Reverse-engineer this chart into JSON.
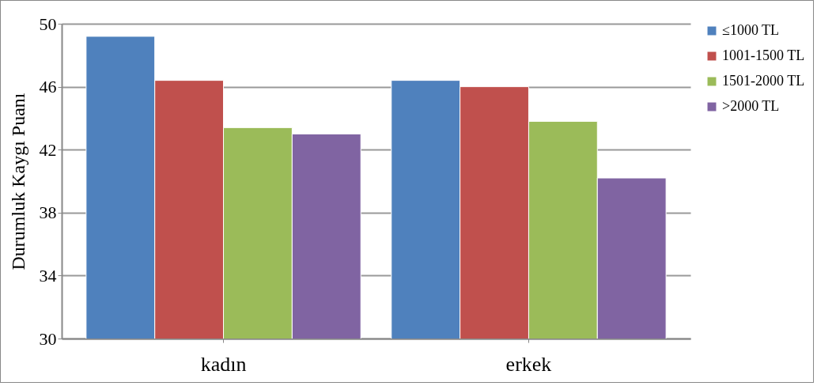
{
  "chart_data": {
    "type": "bar",
    "ylabel": "Durumluk Kaygı Puanı",
    "categories": [
      "kadın",
      "erkek"
    ],
    "series": [
      {
        "name": "≤1000 TL",
        "color": "#4f81bd",
        "values": [
          49.2,
          46.4
        ]
      },
      {
        "name": "1001-1500 TL",
        "color": "#c0504d",
        "values": [
          46.4,
          46.0
        ]
      },
      {
        "name": "1501-2000 TL",
        "color": "#9bbb59",
        "values": [
          43.4,
          43.8
        ]
      },
      {
        "name": ">2000 TL",
        "color": "#8064a2",
        "values": [
          43.0,
          40.2
        ]
      }
    ],
    "ylim": [
      30,
      50
    ],
    "yticks": [
      30,
      34,
      38,
      42,
      46,
      50
    ],
    "grid": "y",
    "legend": "right"
  }
}
